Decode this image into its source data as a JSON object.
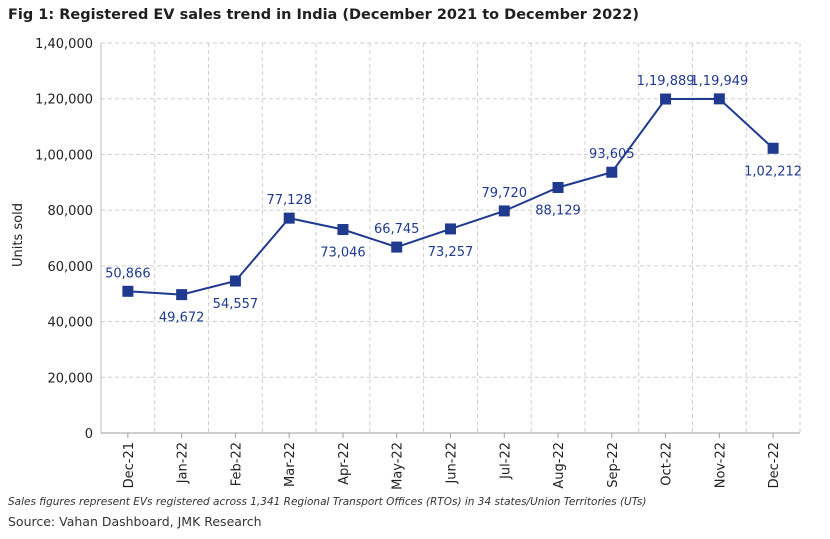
{
  "title": "Fig 1: Registered EV sales trend in India (December 2021 to December 2022)",
  "footnote": "Sales figures represent EVs registered across 1,341 Regional Transport Offices (RTOs) in 34 states/Union Territories (UTs)",
  "source": "Source: Vahan Dashboard, JMK Research",
  "chart_data": {
    "type": "line",
    "title": "Fig 1: Registered EV sales trend in India (December 2021 to December 2022)",
    "xlabel": "",
    "ylabel": "Units sold",
    "ylim": [
      0,
      140000
    ],
    "yticks": [
      0,
      20000,
      40000,
      60000,
      80000,
      100000,
      120000,
      140000
    ],
    "ytick_labels": [
      "0",
      "20,000",
      "40,000",
      "60,000",
      "80,000",
      "1,00,000",
      "1,20,000",
      "1,40,000"
    ],
    "grid": true,
    "categories": [
      "Dec-21",
      "Jan-22",
      "Feb-22",
      "Mar-22",
      "Apr-22",
      "May-22",
      "Jun-22",
      "Jul-22",
      "Aug-22",
      "Sep-22",
      "Oct-22",
      "Nov-22",
      "Dec-22"
    ],
    "series": [
      {
        "values": [
          50866,
          49672,
          54557,
          77128,
          73046,
          66745,
          73257,
          79720,
          88129,
          93605,
          119889,
          119949,
          102212
        ],
        "data_labels": [
          "50,866",
          "49,672",
          "54,557",
          "77,128",
          "73,046",
          "66,745",
          "73,257",
          "79,720",
          "88,129",
          "93,605",
          "1,19,889",
          "1,19,949",
          "1,02,212"
        ],
        "color": "#1f3a8f"
      }
    ]
  }
}
